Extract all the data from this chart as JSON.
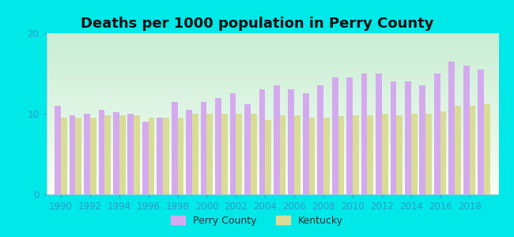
{
  "title": "Deaths per 1000 population in Perry County",
  "years": [
    1990,
    1991,
    1992,
    1993,
    1994,
    1995,
    1996,
    1997,
    1998,
    1999,
    2000,
    2001,
    2002,
    2003,
    2004,
    2005,
    2006,
    2007,
    2008,
    2009,
    2010,
    2011,
    2012,
    2013,
    2014,
    2015,
    2016,
    2017,
    2018,
    2019
  ],
  "perry_county": [
    11.0,
    9.8,
    10.0,
    10.5,
    10.2,
    10.0,
    9.0,
    9.5,
    11.5,
    10.5,
    11.5,
    12.0,
    12.5,
    11.2,
    13.0,
    13.5,
    13.0,
    12.5,
    13.5,
    14.5,
    14.5,
    15.0,
    15.0,
    14.0,
    14.0,
    13.5,
    15.0,
    16.5,
    16.0,
    15.5
  ],
  "kentucky": [
    9.5,
    9.5,
    9.5,
    9.8,
    9.8,
    9.8,
    9.5,
    9.5,
    9.5,
    10.0,
    10.0,
    10.0,
    10.0,
    10.0,
    9.2,
    9.8,
    9.8,
    9.5,
    9.5,
    9.7,
    9.8,
    9.8,
    10.0,
    9.8,
    10.0,
    10.0,
    10.3,
    11.0,
    11.0,
    11.2
  ],
  "perry_color": "#d4aaee",
  "kentucky_color": "#d8dc96",
  "bg_outer": "#00e8e8",
  "ylim": [
    0,
    20
  ],
  "yticks": [
    0,
    10,
    20
  ],
  "bar_width": 0.42,
  "title_fontsize": 13,
  "tick_fontsize": 8.5,
  "legend_fontsize": 9,
  "plot_bg_top": "#f5fdf0",
  "plot_bg_bottom": "#d0edda"
}
